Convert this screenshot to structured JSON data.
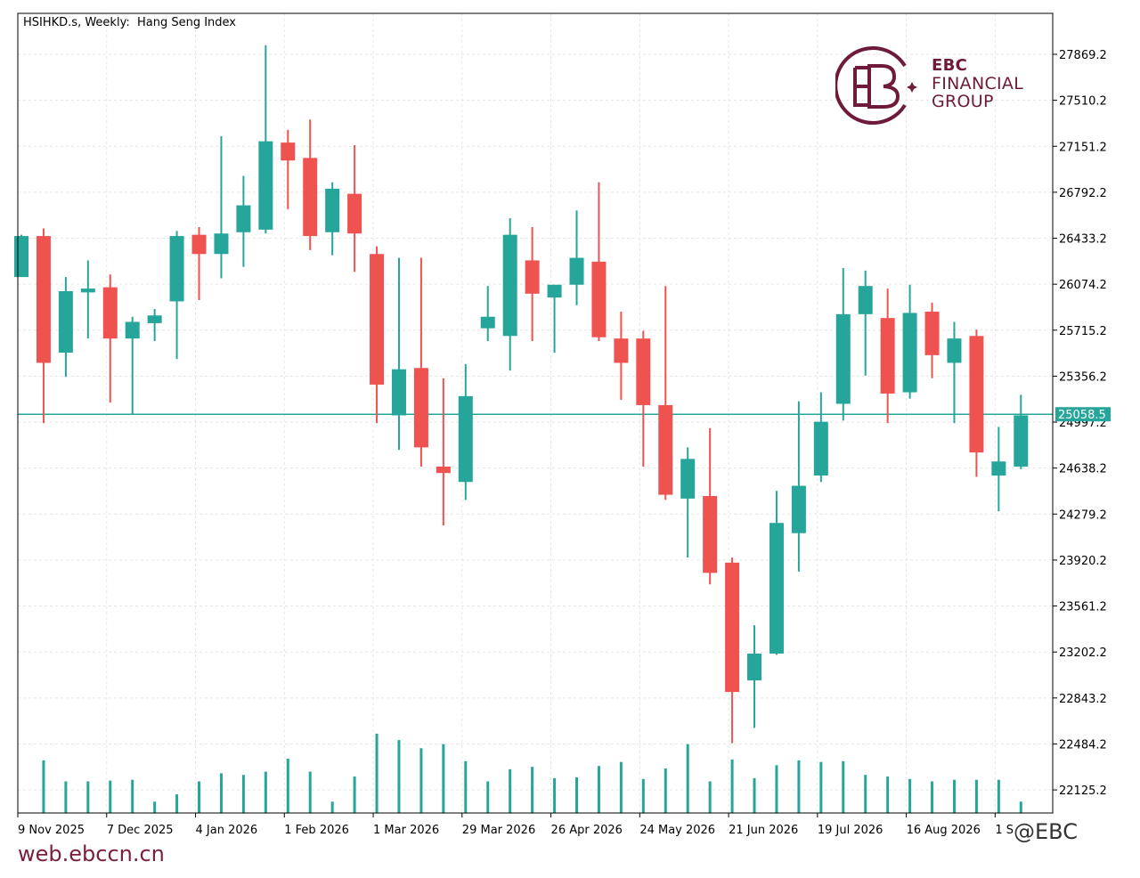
{
  "title": "HSIHKD.s, Weekly:  Hang Seng Index",
  "colors": {
    "bull": "#26a69a",
    "bear": "#ef5350",
    "grid": "#e6e6e6",
    "current_line": "#26a69a",
    "brand": "#6e1b3b"
  },
  "logo": {
    "line1": "EBC",
    "line2": "FINANCIAL",
    "line3": "GROUP"
  },
  "footer": {
    "url": "web.ebccn.cn",
    "watermark": "@EBC"
  },
  "chart_data": {
    "type": "candlestick",
    "title": "HSIHKD.s, Weekly:  Hang Seng Index",
    "ylim": [
      21945,
      28189
    ],
    "y_ticks": [
      "27869.2",
      "27510.2",
      "27151.2",
      "26792.2",
      "26433.2",
      "26074.2",
      "25715.2",
      "25356.2",
      "24997.2",
      "24638.2",
      "24279.2",
      "23920.2",
      "23561.2",
      "23202.2",
      "22843.2",
      "22484.2",
      "22125.2"
    ],
    "x_ticks": [
      "9 Nov 2025",
      "7 Dec 2025",
      "4 Jan 2026",
      "1 Feb 2026",
      "1 Mar 2026",
      "29 Mar 2026",
      "26 Apr 2026",
      "24 May 2026",
      "21 Jun 2026",
      "19 Jul 2026",
      "16 Aug 2026",
      "1 S"
    ],
    "x_tick_every": 4,
    "current_price": "25058.5",
    "grid": true,
    "candles": [
      {
        "o": 26130,
        "h": 26460,
        "l": 26130,
        "c": 26450
      },
      {
        "o": 26450,
        "h": 26510,
        "l": 24990,
        "c": 25460
      },
      {
        "o": 25540,
        "h": 26130,
        "l": 25350,
        "c": 26020
      },
      {
        "o": 26010,
        "h": 26260,
        "l": 25650,
        "c": 26040
      },
      {
        "o": 26050,
        "h": 26150,
        "l": 25150,
        "c": 25650
      },
      {
        "o": 25650,
        "h": 25820,
        "l": 25060,
        "c": 25780
      },
      {
        "o": 25770,
        "h": 25880,
        "l": 25630,
        "c": 25830
      },
      {
        "o": 25940,
        "h": 26490,
        "l": 25490,
        "c": 26450
      },
      {
        "o": 26460,
        "h": 26520,
        "l": 25950,
        "c": 26310
      },
      {
        "o": 26310,
        "h": 27230,
        "l": 26120,
        "c": 26470
      },
      {
        "o": 26480,
        "h": 26920,
        "l": 26210,
        "c": 26690
      },
      {
        "o": 26500,
        "h": 27940,
        "l": 26470,
        "c": 27190
      },
      {
        "o": 27180,
        "h": 27280,
        "l": 26660,
        "c": 27040
      },
      {
        "o": 27060,
        "h": 27360,
        "l": 26340,
        "c": 26450
      },
      {
        "o": 26480,
        "h": 26870,
        "l": 26300,
        "c": 26820
      },
      {
        "o": 26780,
        "h": 27160,
        "l": 26170,
        "c": 26470
      },
      {
        "o": 26310,
        "h": 26370,
        "l": 24990,
        "c": 25290
      },
      {
        "o": 25050,
        "h": 26280,
        "l": 24780,
        "c": 25410
      },
      {
        "o": 25420,
        "h": 26280,
        "l": 24650,
        "c": 24800
      },
      {
        "o": 24650,
        "h": 25340,
        "l": 24190,
        "c": 24600
      },
      {
        "o": 24530,
        "h": 25450,
        "l": 24390,
        "c": 25200
      },
      {
        "o": 25730,
        "h": 26060,
        "l": 25630,
        "c": 25820
      },
      {
        "o": 25670,
        "h": 26590,
        "l": 25400,
        "c": 26460
      },
      {
        "o": 26260,
        "h": 26520,
        "l": 25630,
        "c": 26000
      },
      {
        "o": 25970,
        "h": 26060,
        "l": 25540,
        "c": 26070
      },
      {
        "o": 26070,
        "h": 26650,
        "l": 25910,
        "c": 26280
      },
      {
        "o": 26250,
        "h": 26870,
        "l": 25630,
        "c": 25660
      },
      {
        "o": 25650,
        "h": 25860,
        "l": 25170,
        "c": 25460
      },
      {
        "o": 25650,
        "h": 25710,
        "l": 24650,
        "c": 25130
      },
      {
        "o": 25130,
        "h": 26060,
        "l": 24390,
        "c": 24430
      },
      {
        "o": 24400,
        "h": 24800,
        "l": 23940,
        "c": 24710
      },
      {
        "o": 24420,
        "h": 24950,
        "l": 23730,
        "c": 23820
      },
      {
        "o": 23900,
        "h": 23940,
        "l": 22490,
        "c": 22890
      },
      {
        "o": 22980,
        "h": 23410,
        "l": 22610,
        "c": 23190
      },
      {
        "o": 23190,
        "h": 24460,
        "l": 23180,
        "c": 24210
      },
      {
        "o": 24130,
        "h": 25160,
        "l": 23830,
        "c": 24500
      },
      {
        "o": 24580,
        "h": 25230,
        "l": 24530,
        "c": 25000
      },
      {
        "o": 25140,
        "h": 26200,
        "l": 25010,
        "c": 25840
      },
      {
        "o": 25840,
        "h": 26180,
        "l": 25360,
        "c": 26060
      },
      {
        "o": 25810,
        "h": 26040,
        "l": 24990,
        "c": 25220
      },
      {
        "o": 25230,
        "h": 26070,
        "l": 25180,
        "c": 25850
      },
      {
        "o": 25860,
        "h": 25930,
        "l": 25340,
        "c": 25520
      },
      {
        "o": 25460,
        "h": 25780,
        "l": 24990,
        "c": 25650
      },
      {
        "o": 25670,
        "h": 25720,
        "l": 24570,
        "c": 24760
      },
      {
        "o": 24580,
        "h": 24960,
        "l": 24300,
        "c": 24690
      },
      {
        "o": 24650,
        "h": 25210,
        "l": 24630,
        "c": 25050
      }
    ],
    "volume_ylim": [
      0,
      100
    ],
    "volumes": [
      0,
      65,
      39,
      39,
      40,
      41,
      14,
      23,
      39,
      49,
      47,
      51,
      67,
      51,
      14,
      45,
      98,
      90,
      80,
      85,
      64,
      39,
      54,
      57,
      43,
      44,
      58,
      63,
      42,
      55,
      85,
      39,
      66,
      43,
      59,
      65,
      63,
      64,
      47,
      45,
      42,
      39,
      41,
      41,
      41,
      14
    ]
  }
}
